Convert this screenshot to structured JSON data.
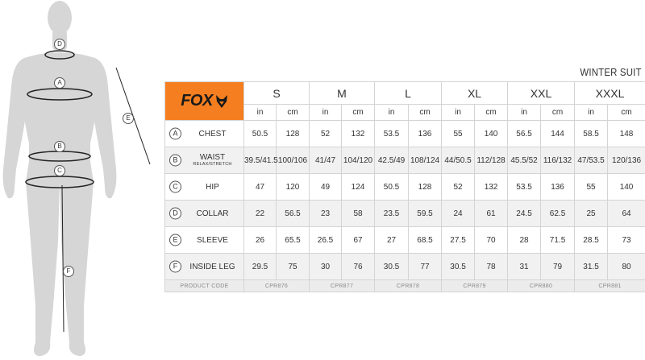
{
  "brand": {
    "name": "FOX",
    "accent": "#f57f20",
    "icon": "fox-head-icon"
  },
  "title": "WINTER SUIT",
  "units": {
    "in": "in",
    "cm": "cm"
  },
  "sizes": [
    "S",
    "M",
    "L",
    "XL",
    "XXL",
    "XXXL"
  ],
  "figure_labels": [
    "D",
    "A",
    "E",
    "B",
    "C",
    "F"
  ],
  "rows": [
    {
      "letter": "A",
      "name": "CHEST",
      "sub": "",
      "values": [
        "50.5",
        "128",
        "52",
        "132",
        "53.5",
        "136",
        "55",
        "140",
        "56.5",
        "144",
        "58.5",
        "148"
      ]
    },
    {
      "letter": "B",
      "name": "WAIST",
      "sub": "RELAX/STRETCH",
      "values": [
        "39.5/41.5",
        "100/106",
        "41/47",
        "104/120",
        "42.5/49",
        "108/124",
        "44/50.5",
        "112/128",
        "45.5/52",
        "116/132",
        "47/53.5",
        "120/136"
      ]
    },
    {
      "letter": "C",
      "name": "HIP",
      "sub": "",
      "values": [
        "47",
        "120",
        "49",
        "124",
        "50.5",
        "128",
        "52",
        "132",
        "53.5",
        "136",
        "55",
        "140"
      ]
    },
    {
      "letter": "D",
      "name": "COLLAR",
      "sub": "",
      "values": [
        "22",
        "56.5",
        "23",
        "58",
        "23.5",
        "59.5",
        "24",
        "61",
        "24.5",
        "62.5",
        "25",
        "64"
      ]
    },
    {
      "letter": "E",
      "name": "SLEEVE",
      "sub": "",
      "values": [
        "26",
        "65.5",
        "26.5",
        "67",
        "27",
        "68.5",
        "27.5",
        "70",
        "28",
        "71.5",
        "28.5",
        "73"
      ]
    },
    {
      "letter": "F",
      "name": "INSIDE LEG",
      "sub": "",
      "values": [
        "29.5",
        "75",
        "30",
        "76",
        "30.5",
        "77",
        "30.5",
        "78",
        "31",
        "79",
        "31.5",
        "80"
      ]
    }
  ],
  "product_code": {
    "label": "PRODUCT CODE",
    "codes": [
      "CPR876",
      "CPR877",
      "CPR878",
      "CPR879",
      "CPR880",
      "CPR881"
    ]
  }
}
